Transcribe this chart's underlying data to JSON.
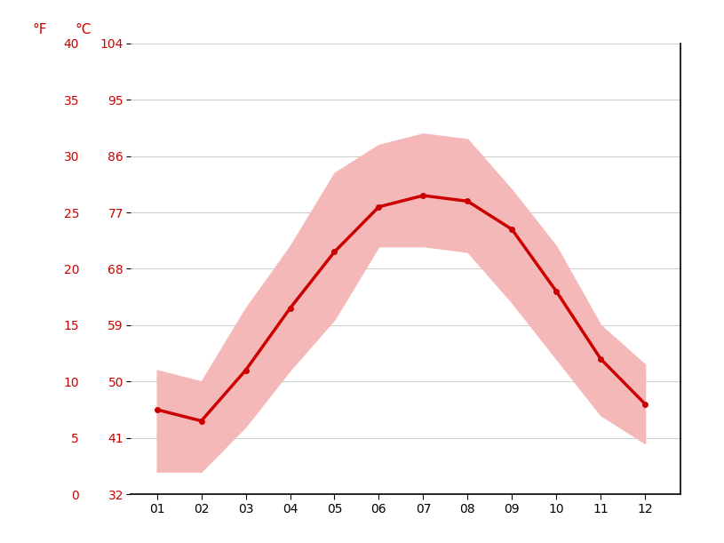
{
  "months": [
    1,
    2,
    3,
    4,
    5,
    6,
    7,
    8,
    9,
    10,
    11,
    12
  ],
  "month_labels": [
    "01",
    "02",
    "03",
    "04",
    "05",
    "06",
    "07",
    "08",
    "09",
    "10",
    "11",
    "12"
  ],
  "mean_temp_c": [
    7.5,
    6.5,
    11.0,
    16.5,
    21.5,
    25.5,
    26.5,
    26.0,
    23.5,
    18.0,
    12.0,
    8.0
  ],
  "high_temp_c": [
    11.0,
    10.0,
    16.5,
    22.0,
    28.5,
    31.0,
    32.0,
    31.5,
    27.0,
    22.0,
    15.0,
    11.5
  ],
  "low_temp_c": [
    2.0,
    2.0,
    6.0,
    11.0,
    15.5,
    22.0,
    22.0,
    21.5,
    17.0,
    12.0,
    7.0,
    4.5
  ],
  "ylim_c": [
    0,
    40
  ],
  "yticks_c": [
    0,
    5,
    10,
    15,
    20,
    25,
    30,
    35,
    40
  ],
  "yticks_f": [
    32,
    41,
    50,
    59,
    68,
    77,
    86,
    95,
    104
  ],
  "line_color": "#cc0000",
  "fill_color": "#f5b8b8",
  "axis_color": "#cc0000",
  "background_color": "#ffffff",
  "grid_color": "#cccccc"
}
